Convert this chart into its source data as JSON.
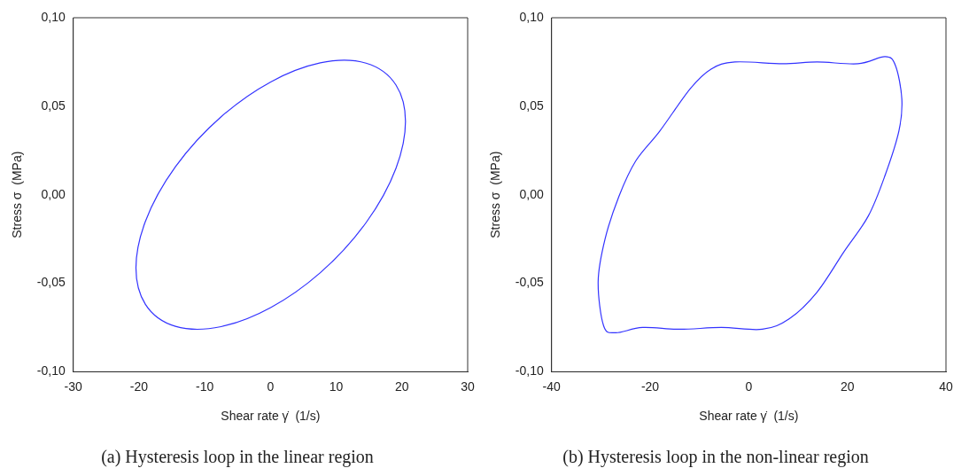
{
  "chart_data": [
    {
      "type": "line",
      "title": "(a) Hysteresis loop in the linear region",
      "xlabel": "Shear rate γ̇  (1/s)",
      "ylabel": "Stress σ  (MPa)",
      "xlim": [
        -30,
        30
      ],
      "xticks": [
        -30,
        -20,
        -10,
        0,
        10,
        20,
        30
      ],
      "ylim": [
        -0.1,
        0.1
      ],
      "yticks": [
        {
          "value": -0.1,
          "label": "-0,10"
        },
        {
          "value": -0.05,
          "label": "-0,05"
        },
        {
          "value": 0,
          "label": "0,00"
        },
        {
          "value": 0.05,
          "label": "0,05"
        },
        {
          "value": 0.1,
          "label": "0,10"
        }
      ],
      "grid": false,
      "legend": false
    },
    {
      "type": "line",
      "title": "(b) Hysteresis loop in the non-linear region",
      "xlabel": "Shear rate γ̇  (1/s)",
      "ylabel": "Stress σ  (MPa)",
      "xlim": [
        -40,
        40
      ],
      "xticks": [
        -40,
        -20,
        0,
        20,
        40
      ],
      "ylim": [
        -0.1,
        0.1
      ],
      "yticks": [
        {
          "value": -0.1,
          "label": "-0,10"
        },
        {
          "value": -0.05,
          "label": "-0,05"
        },
        {
          "value": 0,
          "label": "0,00"
        },
        {
          "value": 0.05,
          "label": "0,05"
        },
        {
          "value": 0.1,
          "label": "0,10"
        }
      ],
      "grid": false,
      "legend": false
    }
  ]
}
